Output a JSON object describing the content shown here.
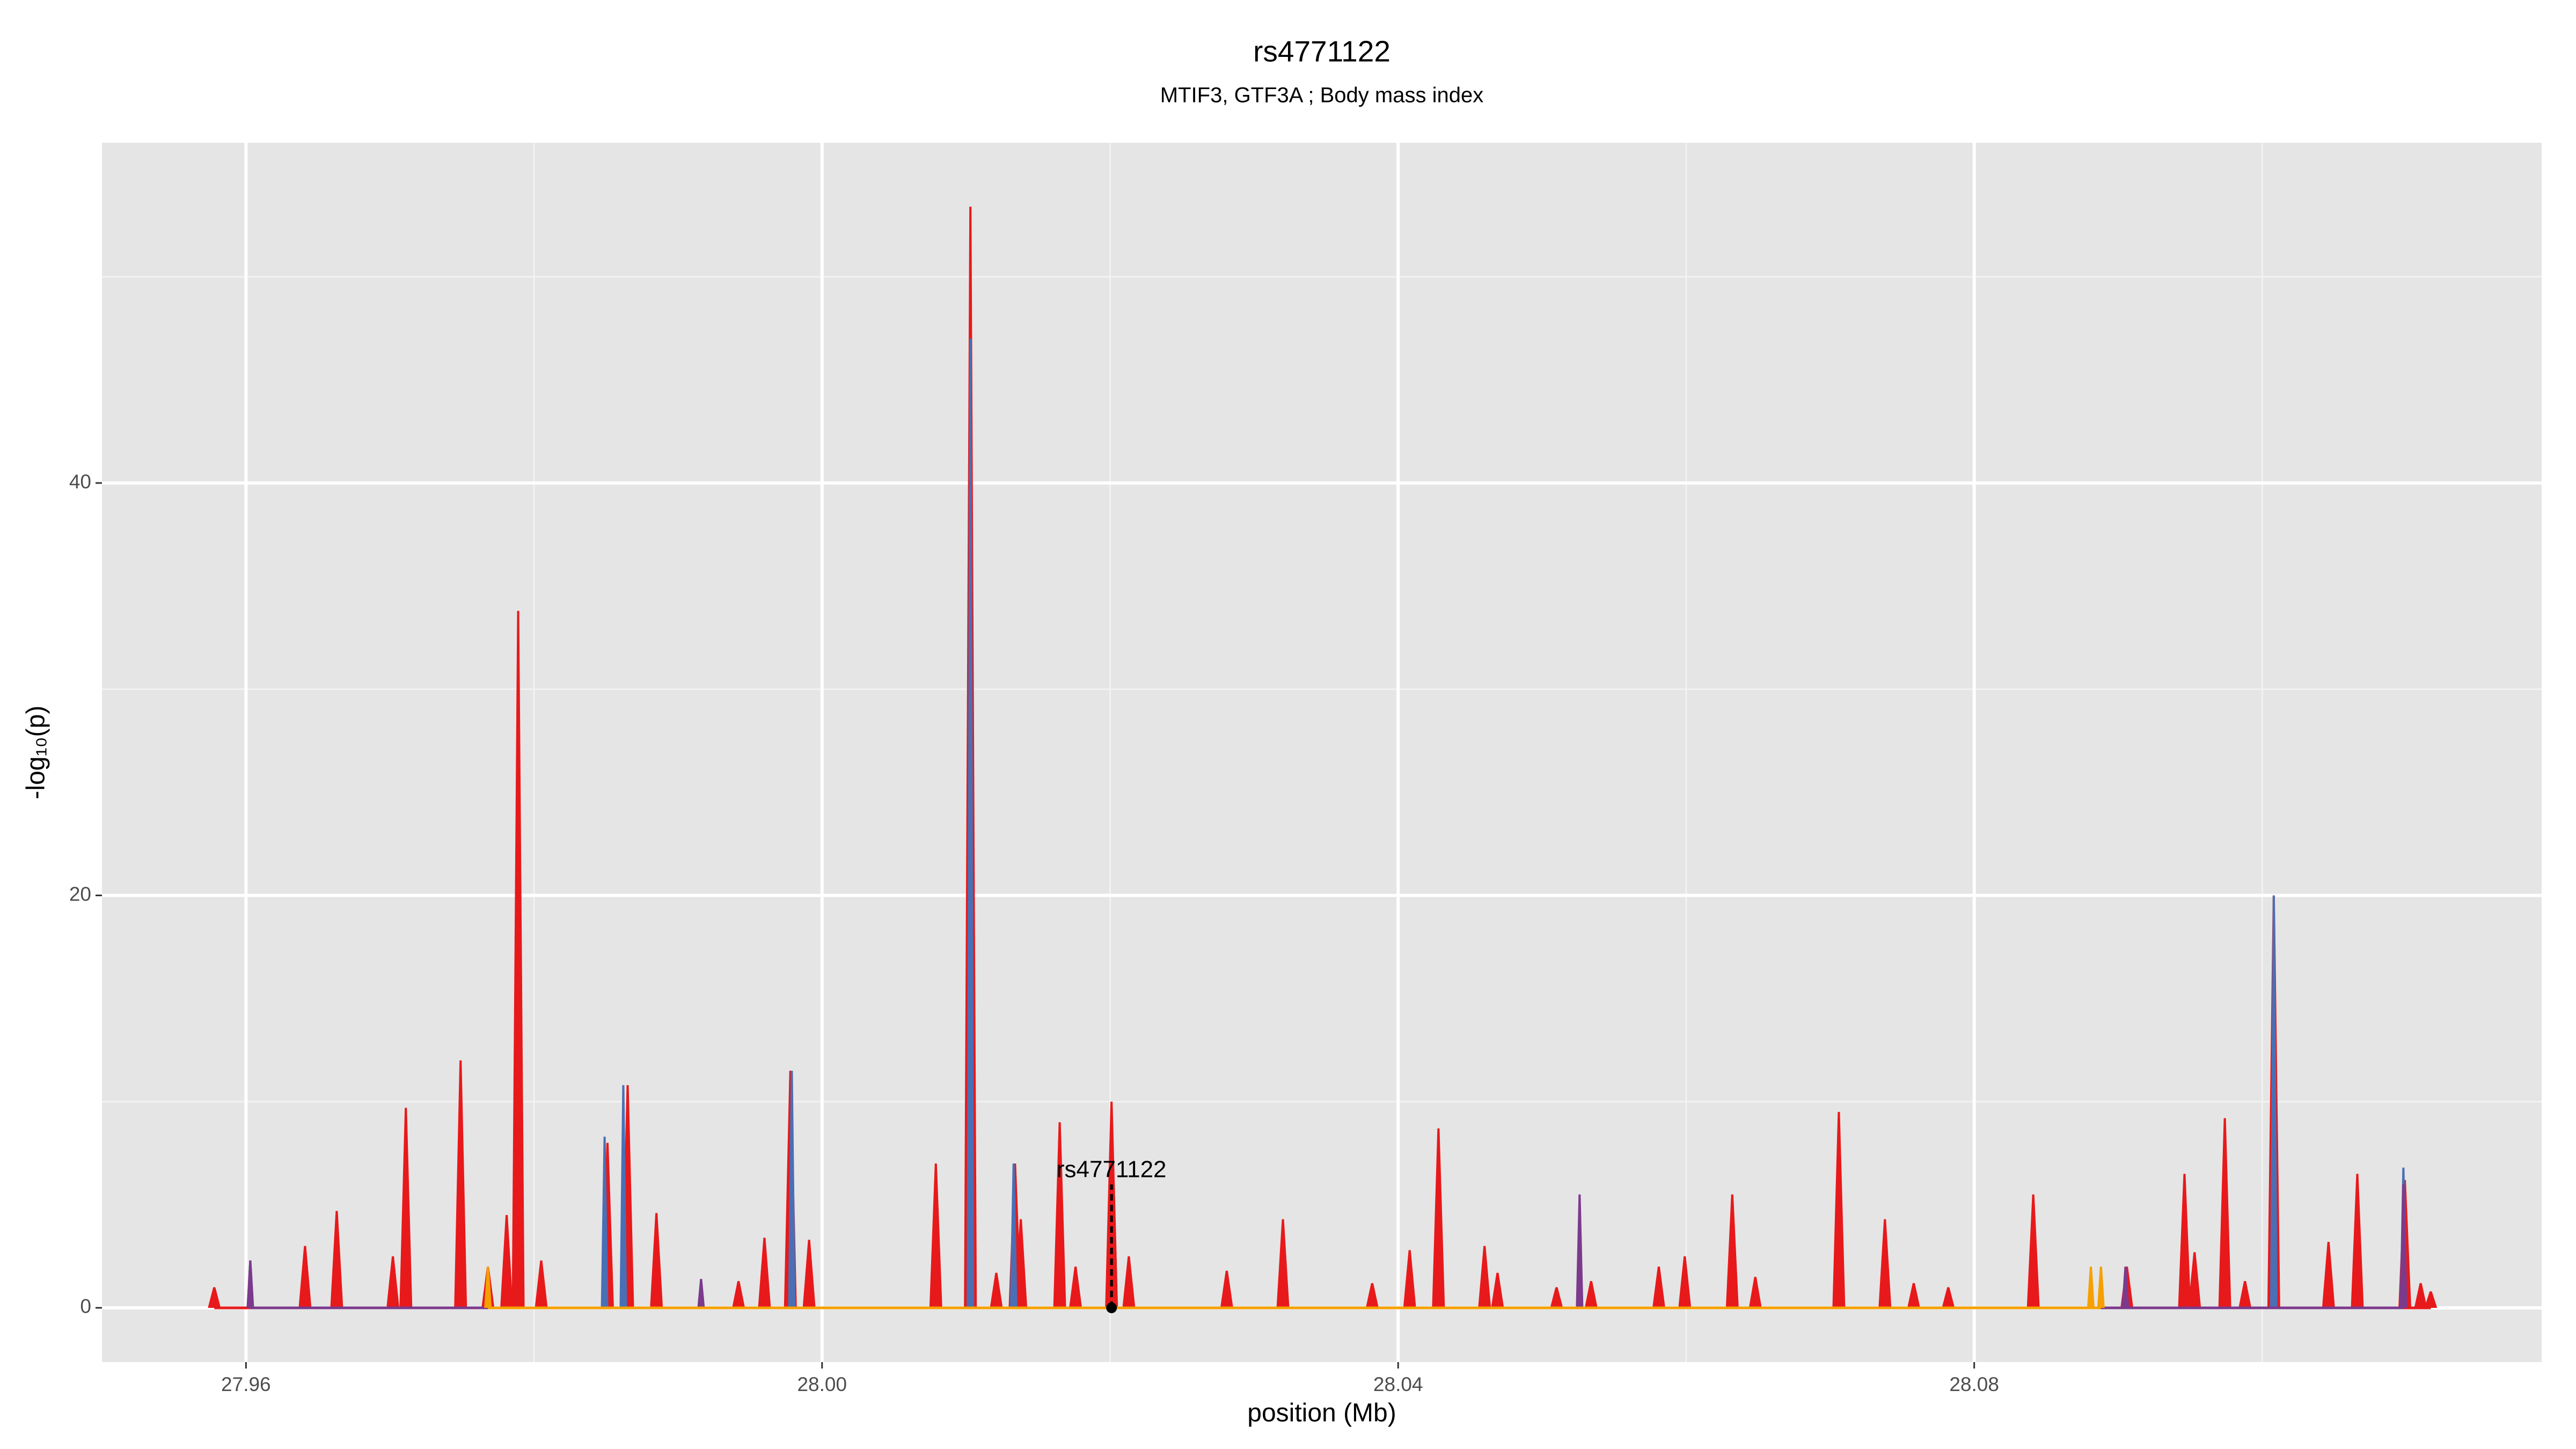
{
  "chart_data": {
    "type": "area",
    "title": "rs4771122",
    "subtitle": "MTIF3, GTF3A ; Body mass index",
    "xlabel": "position (Mb)",
    "ylabel": "-log₁₀(p)",
    "xlim": [
      27.95,
      28.1194
    ],
    "ylim": [
      -2.63,
      56.5
    ],
    "xticks": [
      27.96,
      {
        "value": 28,
        "label": "28.00"
      },
      28.04,
      28.08
    ],
    "yticks": [
      0,
      20,
      40
    ],
    "xminorticks": [
      27.98,
      28.02,
      28.06,
      28.1
    ],
    "yminorticks": [
      10,
      30,
      50
    ],
    "grid": true,
    "series": [
      {
        "name": "red",
        "color": "#e8191b",
        "x": [
          27.9578,
          27.9641,
          27.9663,
          27.9702,
          27.9711,
          27.9749,
          27.9768,
          27.9781,
          27.9789,
          27.9805,
          27.9851,
          27.9865,
          27.9885,
          27.9942,
          27.996,
          27.9978,
          27.9991,
          28.0079,
          28.0103,
          28.0121,
          28.0134,
          28.0138,
          28.0165,
          28.0176,
          28.0201,
          28.0213,
          28.0281,
          28.032,
          28.0382,
          28.0408,
          28.0428,
          28.046,
          28.0469,
          28.051,
          28.0534,
          28.0581,
          28.0599,
          28.0632,
          28.0648,
          28.0706,
          28.0738,
          28.0758,
          28.0782,
          28.0841,
          28.0906,
          28.0946,
          28.0953,
          28.0974,
          28.0988,
          28.1008,
          28.1046,
          28.1066,
          28.1099,
          28.111,
          28.1117
        ],
        "values": [
          1,
          3,
          4.7,
          2.5,
          9.7,
          12,
          2,
          4.5,
          33.8,
          2.3,
          8,
          10.8,
          4.6,
          1.3,
          3.4,
          11.5,
          3.3,
          7,
          53.4,
          1.7,
          7,
          4.3,
          9,
          2,
          10,
          2.5,
          1.8,
          4.3,
          1.2,
          2.8,
          8.7,
          3,
          1.7,
          1,
          1.3,
          2,
          2.5,
          5.5,
          1.5,
          9.5,
          4.3,
          1.2,
          1,
          5.5,
          2,
          6.5,
          2.7,
          9.2,
          1.3,
          20,
          3.2,
          6.5,
          6.2,
          1.2,
          0.8
        ]
      },
      {
        "name": "blue",
        "color": "#4a6fb5",
        "x": [
          27.9603,
          27.9849,
          27.9862,
          27.9979,
          28.0103,
          28.0133,
          28.1008,
          28.1098
        ],
        "values": [
          2.3,
          8.3,
          10.8,
          11.5,
          47,
          7,
          20,
          6.8
        ]
      },
      {
        "name": "purple",
        "color": "#7b3a8c",
        "x": [
          27.9603,
          27.9916,
          28.0526,
          28.0905,
          28.1098
        ],
        "values": [
          2.3,
          1.4,
          5.5,
          2,
          6
        ]
      },
      {
        "name": "orange",
        "color": "#f5a000",
        "x": [
          27.9768,
          28.0881,
          28.0888
        ],
        "values": [
          2,
          2,
          2
        ]
      }
    ],
    "annotation": {
      "text": "rs4771122",
      "x": 28.0201,
      "y": 0
    }
  }
}
